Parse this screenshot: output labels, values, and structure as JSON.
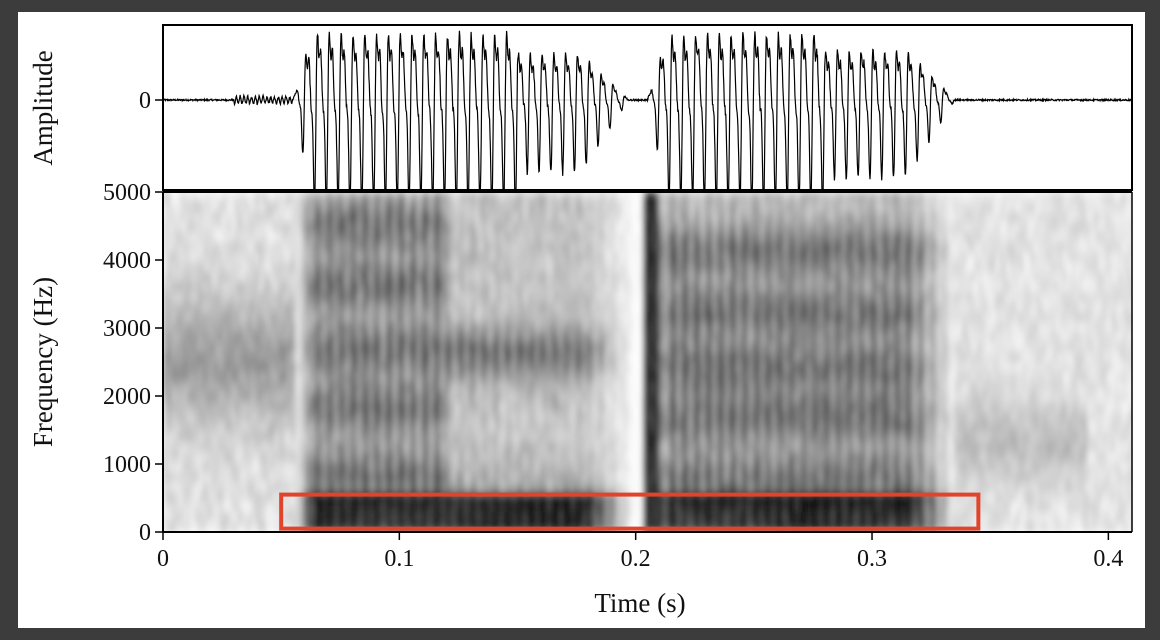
{
  "chart_data": {
    "type": "waveform+spectrogram",
    "xlabel": "Time (s)",
    "xlim": [
      0,
      0.41
    ],
    "x_ticks": [
      "0",
      "0.1",
      "0.2",
      "0.3",
      "0.4"
    ],
    "x_tick_values": [
      0,
      0.1,
      0.2,
      0.3,
      0.4
    ],
    "waveform": {
      "ylabel": "Amplitude",
      "y_ticks": [
        "0"
      ],
      "y_tick_values": [
        0
      ],
      "voiced_segments_s": [
        [
          0.055,
          0.197
        ],
        [
          0.205,
          0.335
        ]
      ],
      "approx_pitch_hz": 200
    },
    "spectrogram": {
      "ylabel": "Frequency (Hz)",
      "ylim": [
        0,
        5000
      ],
      "y_ticks": [
        "0",
        "1000",
        "2000",
        "3000",
        "4000",
        "5000"
      ],
      "y_tick_values": [
        0,
        1000,
        2000,
        3000,
        4000,
        5000
      ],
      "colormap": "grayscale (dark = high energy)",
      "silence_gap_s": [
        0.197,
        0.205
      ]
    },
    "annotation": {
      "type": "rectangle",
      "color": "#e0452c",
      "x_range_s": [
        0.05,
        0.345
      ],
      "y_range_hz": [
        50,
        550
      ]
    }
  }
}
